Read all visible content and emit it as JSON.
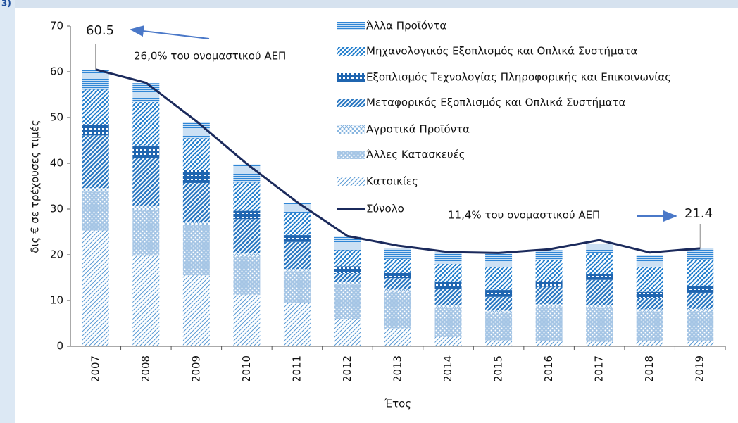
{
  "corner_label": "3)",
  "chart_data": {
    "type": "bar",
    "stacked": true,
    "y_label": "δις € σε τρέχουσες τιμές",
    "x_label": "Έτος",
    "categories": [
      "2007",
      "2008",
      "2009",
      "2010",
      "2011",
      "2012",
      "2013",
      "2014",
      "2015",
      "2016",
      "2017",
      "2018",
      "2019"
    ],
    "ylim": [
      0,
      70
    ],
    "yticks": [
      0,
      10,
      20,
      30,
      40,
      50,
      60,
      70
    ],
    "series": [
      {
        "name": "Κατοικίες",
        "color": "#5b9bd5",
        "pattern": "diag-thin",
        "values": [
          25.3,
          19.8,
          15.5,
          11.2,
          9.4,
          6.0,
          3.9,
          2.0,
          1.3,
          1.2,
          1.0,
          1.1,
          1.2
        ]
      },
      {
        "name": "Άλλες Κατασκευές",
        "color": "#5a95cf",
        "pattern": "dots",
        "values": [
          8.5,
          10.0,
          11.0,
          8.5,
          7.0,
          7.5,
          8.0,
          6.5,
          6.0,
          7.5,
          7.5,
          6.5,
          6.5
        ]
      },
      {
        "name": "Αγροτικά Προϊόντα",
        "color": "#7fb0de",
        "pattern": "cross",
        "values": [
          0.8,
          0.8,
          0.7,
          0.6,
          0.5,
          0.5,
          0.5,
          0.5,
          0.5,
          0.5,
          0.5,
          0.5,
          0.5
        ]
      },
      {
        "name": "Μεταφορικός Εξοπλισμός και Οπλικά Συστήματα",
        "color": "#2a78c2",
        "pattern": "diag-thick",
        "values": [
          11.5,
          10.5,
          8.5,
          7.5,
          5.9,
          2.0,
          2.5,
          3.5,
          3.0,
          3.8,
          5.5,
          2.5,
          3.5
        ]
      },
      {
        "name": "Εξοπλισμός Τεχνολογίας Πληροφορικής και Επικοινωνίας",
        "color": "#1f65b0",
        "pattern": "brick",
        "values": [
          2.5,
          2.8,
          2.8,
          1.8,
          1.5,
          1.5,
          1.2,
          1.5,
          1.5,
          1.3,
          1.3,
          1.3,
          1.5
        ]
      },
      {
        "name": "Μηχανολογικός Εξοπλισμός και Οπλικά Συστήματα",
        "color": "#1e7ccc",
        "pattern": "dash-diag",
        "values": [
          7.5,
          9.5,
          7.0,
          6.2,
          4.8,
          3.5,
          3.0,
          4.0,
          5.0,
          4.5,
          4.5,
          5.5,
          5.8
        ]
      },
      {
        "name": "Άλλα Προϊόντα",
        "color": "#2f86d6",
        "pattern": "horiz",
        "values": [
          4.4,
          4.1,
          3.5,
          4.0,
          2.3,
          2.9,
          2.4,
          2.5,
          2.9,
          2.2,
          2.1,
          2.6,
          2.4
        ]
      }
    ],
    "line_series": {
      "name": "Σύνολο",
      "color": "#1b2a5c",
      "values": [
        60.5,
        57.6,
        49.2,
        39.9,
        31.5,
        24.1,
        22.0,
        20.6,
        20.4,
        21.2,
        23.2,
        20.5,
        21.4
      ]
    },
    "annotations": [
      "60.5",
      "26,0% του ονομαστικού ΑΕΠ",
      "11,4% του ονομαστικού ΑΕΠ",
      "21.4"
    ]
  }
}
